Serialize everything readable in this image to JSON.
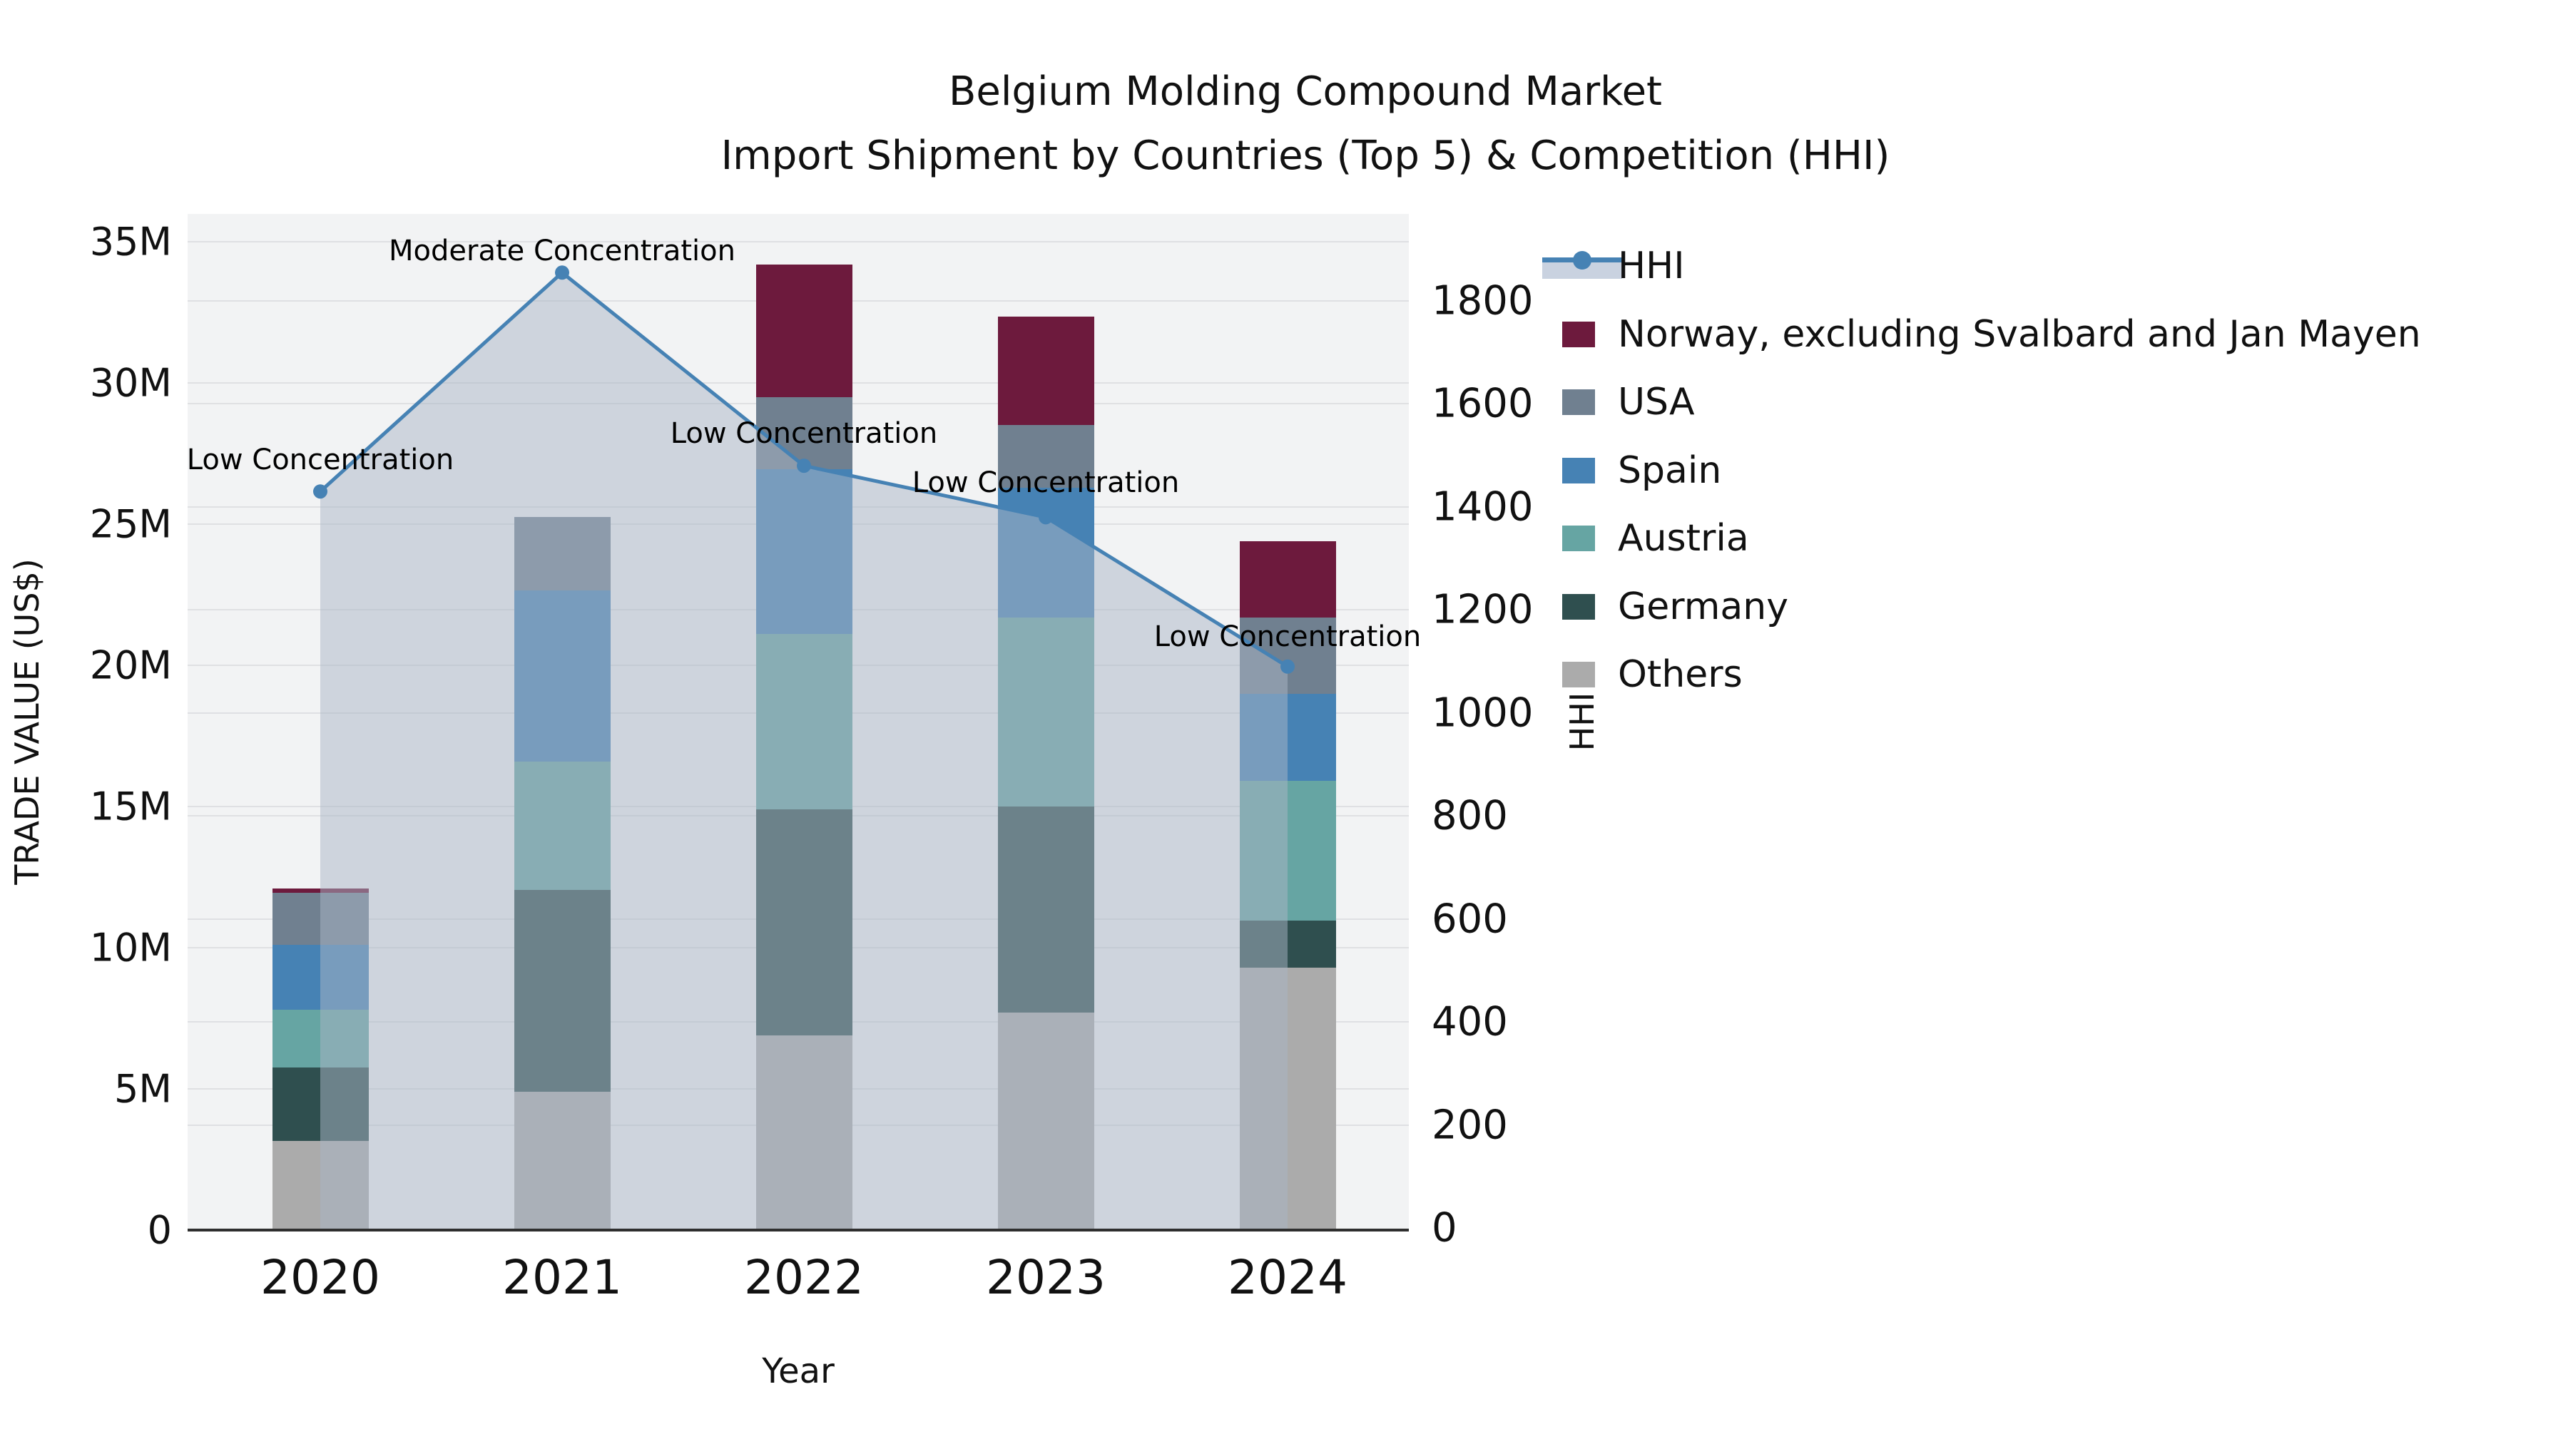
{
  "title": {
    "line1": "Belgium Molding Compound Market",
    "line2": "Import Shipment by Countries (Top 5) & Competition (HHI)"
  },
  "axes": {
    "y_left": {
      "title": "TRADE VALUE (US$)",
      "tick_values_millions": [
        0,
        5,
        10,
        15,
        20,
        25,
        30,
        35
      ],
      "tick_labels": [
        "0",
        "5M",
        "10M",
        "15M",
        "20M",
        "25M",
        "30M",
        "35M"
      ],
      "max_millions": 35
    },
    "y_right": {
      "title": "HHI",
      "tick_values": [
        0,
        200,
        400,
        600,
        800,
        1000,
        1200,
        1400,
        1600,
        1800
      ],
      "tick_labels": [
        "0",
        "200",
        "400",
        "600",
        "800",
        "1000",
        "1200",
        "1400",
        "1600",
        "1800"
      ],
      "max": 1800
    },
    "x": {
      "title": "Year",
      "categories": [
        "2020",
        "2021",
        "2022",
        "2023",
        "2024"
      ]
    }
  },
  "legend": {
    "entries": [
      {
        "label": "HHI",
        "type": "line",
        "color_key": "hhi"
      },
      {
        "label": "Norway, excluding Svalbard and Jan Mayen",
        "type": "patch",
        "color_key": "norway"
      },
      {
        "label": "USA",
        "type": "patch",
        "color_key": "usa"
      },
      {
        "label": "Spain",
        "type": "patch",
        "color_key": "spain"
      },
      {
        "label": "Austria",
        "type": "patch",
        "color_key": "austria"
      },
      {
        "label": "Germany",
        "type": "patch",
        "color_key": "germany"
      },
      {
        "label": "Others",
        "type": "patch",
        "color_key": "others"
      }
    ]
  },
  "colors": {
    "hhi": "#4682b4",
    "hhi_area": "rgba(170,181,197,0.5)",
    "norway": "#6d1a3d",
    "usa": "#708090",
    "spain": "#4682b4",
    "austria": "#66a5a3",
    "germany": "#2f4f4f",
    "others": "#ababab",
    "plot_bg": "#f2f3f4",
    "grid": "#dfe0e3",
    "spine": "#2f2f2f"
  },
  "chart_data": {
    "type": "stacked-bar-with-line",
    "x": [
      "2020",
      "2021",
      "2022",
      "2023",
      "2024"
    ],
    "bar_unit": "millions USD",
    "series": [
      {
        "name": "Others",
        "color_key": "others",
        "values_millions": [
          3.15,
          4.9,
          6.9,
          7.7,
          9.3
        ]
      },
      {
        "name": "Germany",
        "color_key": "germany",
        "values_millions": [
          2.6,
          7.15,
          8.0,
          7.3,
          1.65
        ]
      },
      {
        "name": "Austria",
        "color_key": "austria",
        "values_millions": [
          2.05,
          4.55,
          6.2,
          6.7,
          4.95
        ]
      },
      {
        "name": "Spain",
        "color_key": "spain",
        "values_millions": [
          2.3,
          6.05,
          5.85,
          4.6,
          3.1
        ]
      },
      {
        "name": "USA",
        "color_key": "usa",
        "values_millions": [
          1.85,
          2.6,
          2.55,
          2.2,
          2.7
        ]
      },
      {
        "name": "Norway, excluding Svalbard and Jan Mayen",
        "color_key": "norway",
        "values_millions": [
          0.15,
          0,
          4.7,
          3.85,
          2.7
        ]
      }
    ],
    "bar_totals_millions": [
      12.1,
      25.25,
      34.2,
      32.35,
      24.4
    ],
    "line_series": {
      "name": "HHI",
      "values": [
        1430,
        1855,
        1480,
        1380,
        1090
      ],
      "axis": "right",
      "area_fill": true
    },
    "annotations": [
      {
        "x": "2020",
        "text": "Low Concentration"
      },
      {
        "x": "2021",
        "text": "Moderate Concentration"
      },
      {
        "x": "2022",
        "text": "Low Concentration"
      },
      {
        "x": "2023",
        "text": "Low Concentration"
      },
      {
        "x": "2024",
        "text": "Low Concentration"
      }
    ],
    "ylabel_left": "TRADE VALUE (US$)",
    "ylabel_right": "HHI",
    "xlabel": "Year",
    "ylim_left_millions": [
      0,
      35
    ],
    "ylim_right": [
      0,
      1800
    ],
    "grid": true,
    "legend_position": "upper right, outside plot"
  }
}
